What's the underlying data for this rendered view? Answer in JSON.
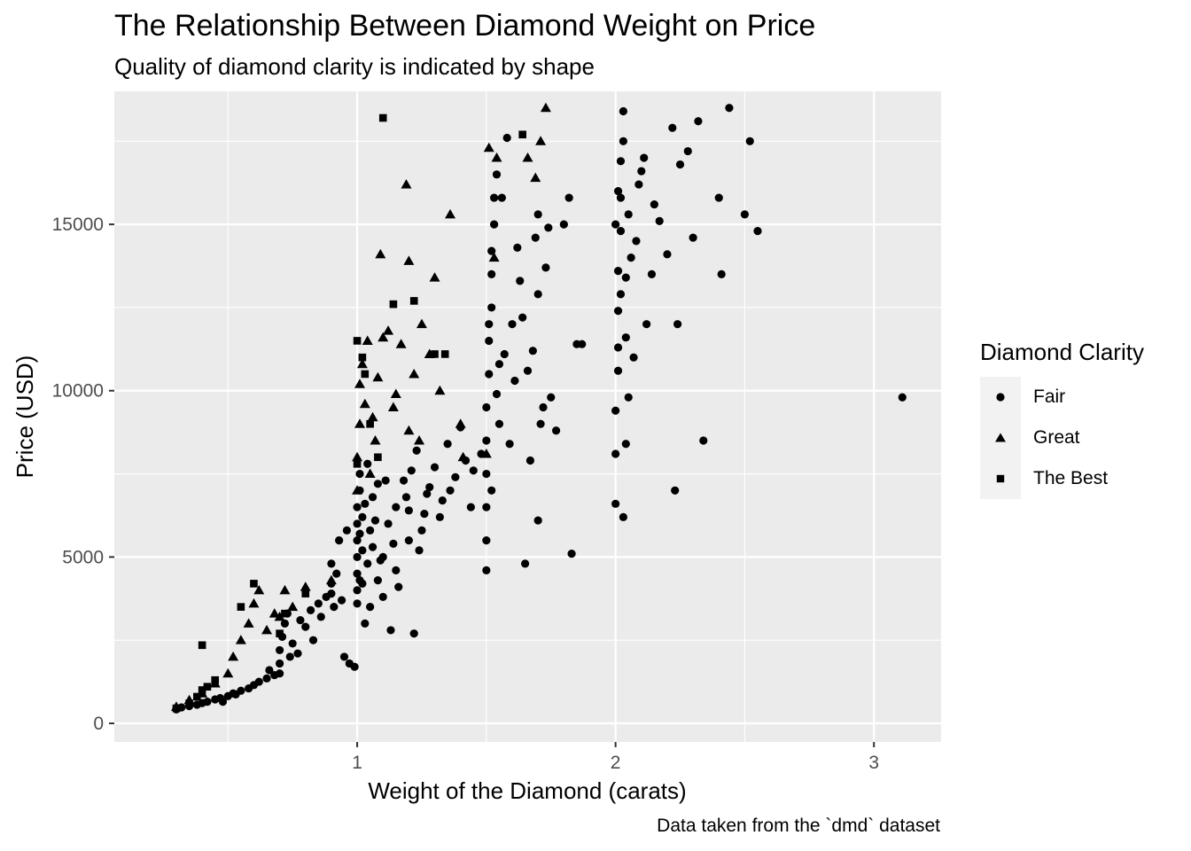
{
  "chart_data": {
    "type": "scatter",
    "title": "The Relationship Between Diamond Weight on Price",
    "subtitle": "Quality of diamond clarity is indicated by shape",
    "caption": "Data taken from the `dmd` dataset",
    "xlabel": "Weight of the Diamond (carats)",
    "ylabel": "Price (USD)",
    "xlim": [
      0.06,
      3.26
    ],
    "ylim": [
      -560,
      19000
    ],
    "x_ticks": [
      1,
      2,
      3
    ],
    "y_ticks": [
      0,
      5000,
      10000,
      15000
    ],
    "grid": true,
    "background": "#ebebeb",
    "legend": {
      "title": "Diamond Clarity",
      "position": "right",
      "entries": [
        {
          "label": "Fair",
          "shape": "circle"
        },
        {
          "label": "Great",
          "shape": "triangle"
        },
        {
          "label": "The Best",
          "shape": "square"
        }
      ]
    },
    "series": [
      {
        "name": "Fair",
        "shape": "circle",
        "points": [
          [
            0.3,
            420
          ],
          [
            0.32,
            480
          ],
          [
            0.35,
            520
          ],
          [
            0.38,
            560
          ],
          [
            0.4,
            610
          ],
          [
            0.42,
            650
          ],
          [
            0.45,
            720
          ],
          [
            0.47,
            760
          ],
          [
            0.5,
            820
          ],
          [
            0.52,
            900
          ],
          [
            0.55,
            980
          ],
          [
            0.6,
            1150
          ],
          [
            0.62,
            1250
          ],
          [
            0.65,
            1350
          ],
          [
            0.7,
            1500
          ],
          [
            0.7,
            1800
          ],
          [
            0.7,
            2200
          ],
          [
            0.71,
            2600
          ],
          [
            0.72,
            3000
          ],
          [
            0.73,
            3300
          ],
          [
            0.75,
            2400
          ],
          [
            0.78,
            3100
          ],
          [
            0.8,
            2900
          ],
          [
            0.82,
            3400
          ],
          [
            0.85,
            3600
          ],
          [
            0.88,
            3800
          ],
          [
            0.9,
            3900
          ],
          [
            0.9,
            4200
          ],
          [
            0.9,
            4800
          ],
          [
            0.91,
            3500
          ],
          [
            0.93,
            5500
          ],
          [
            0.95,
            2000
          ],
          [
            0.97,
            1800
          ],
          [
            0.99,
            1700
          ],
          [
            1.0,
            4000
          ],
          [
            1.0,
            4500
          ],
          [
            1.0,
            5000
          ],
          [
            1.0,
            5500
          ],
          [
            1.0,
            6000
          ],
          [
            1.0,
            6500
          ],
          [
            1.01,
            7000
          ],
          [
            1.01,
            7500
          ],
          [
            1.02,
            4200
          ],
          [
            1.02,
            5200
          ],
          [
            1.02,
            6200
          ],
          [
            1.03,
            3000
          ],
          [
            1.04,
            4800
          ],
          [
            1.05,
            3500
          ],
          [
            1.05,
            5800
          ],
          [
            1.06,
            6800
          ],
          [
            1.08,
            4300
          ],
          [
            1.08,
            7200
          ],
          [
            1.1,
            3800
          ],
          [
            1.1,
            5000
          ],
          [
            1.12,
            6000
          ],
          [
            1.13,
            2800
          ],
          [
            1.15,
            6500
          ],
          [
            1.15,
            4600
          ],
          [
            1.18,
            7300
          ],
          [
            1.2,
            5500
          ],
          [
            1.2,
            6400
          ],
          [
            1.22,
            2700
          ],
          [
            1.23,
            8200
          ],
          [
            1.25,
            5800
          ],
          [
            1.27,
            6900
          ],
          [
            1.3,
            7700
          ],
          [
            1.32,
            6200
          ],
          [
            1.35,
            8400
          ],
          [
            1.38,
            7400
          ],
          [
            1.4,
            8900
          ],
          [
            1.42,
            7900
          ],
          [
            1.45,
            7600
          ],
          [
            1.5,
            4600
          ],
          [
            1.5,
            5500
          ],
          [
            1.5,
            6500
          ],
          [
            1.5,
            7500
          ],
          [
            1.5,
            8500
          ],
          [
            1.5,
            9500
          ],
          [
            1.51,
            10500
          ],
          [
            1.51,
            11500
          ],
          [
            1.52,
            12500
          ],
          [
            1.52,
            13500
          ],
          [
            1.52,
            14200
          ],
          [
            1.53,
            15000
          ],
          [
            1.53,
            15800
          ],
          [
            1.54,
            16500
          ],
          [
            1.55,
            9000
          ],
          [
            1.55,
            10800
          ],
          [
            1.56,
            15800
          ],
          [
            1.58,
            17600
          ],
          [
            1.6,
            12000
          ],
          [
            1.62,
            14300
          ],
          [
            1.63,
            13300
          ],
          [
            1.65,
            4800
          ],
          [
            1.66,
            10600
          ],
          [
            1.67,
            7900
          ],
          [
            1.68,
            11200
          ],
          [
            1.7,
            6100
          ],
          [
            1.7,
            12900
          ],
          [
            1.7,
            15300
          ],
          [
            1.71,
            9000
          ],
          [
            1.73,
            13700
          ],
          [
            1.75,
            9800
          ],
          [
            1.77,
            8800
          ],
          [
            1.8,
            15000
          ],
          [
            1.82,
            15800
          ],
          [
            1.83,
            5100
          ],
          [
            1.85,
            11400
          ],
          [
            1.87,
            11400
          ],
          [
            2.0,
            6600
          ],
          [
            2.0,
            8100
          ],
          [
            2.0,
            9400
          ],
          [
            2.01,
            10600
          ],
          [
            2.01,
            11300
          ],
          [
            2.01,
            12400
          ],
          [
            2.01,
            13600
          ],
          [
            2.02,
            14800
          ],
          [
            2.02,
            15800
          ],
          [
            2.02,
            16900
          ],
          [
            2.03,
            17500
          ],
          [
            2.03,
            18400
          ],
          [
            2.04,
            11600
          ],
          [
            2.04,
            13400
          ],
          [
            2.05,
            9800
          ],
          [
            2.05,
            15300
          ],
          [
            2.07,
            11000
          ],
          [
            2.08,
            14500
          ],
          [
            2.1,
            16600
          ],
          [
            2.12,
            12000
          ],
          [
            2.14,
            13500
          ],
          [
            2.15,
            15600
          ],
          [
            2.17,
            15100
          ],
          [
            2.2,
            14100
          ],
          [
            2.22,
            17900
          ],
          [
            2.23,
            7000
          ],
          [
            2.24,
            12000
          ],
          [
            2.25,
            16800
          ],
          [
            2.28,
            17200
          ],
          [
            2.3,
            14600
          ],
          [
            2.32,
            18100
          ],
          [
            2.34,
            8500
          ],
          [
            2.4,
            15800
          ],
          [
            2.41,
            13500
          ],
          [
            2.44,
            18500
          ],
          [
            2.5,
            15300
          ],
          [
            2.52,
            17500
          ],
          [
            2.55,
            14800
          ],
          [
            3.11,
            9800
          ],
          [
            0.48,
            650
          ],
          [
            0.53,
            870
          ],
          [
            0.58,
            1050
          ],
          [
            0.66,
            1600
          ],
          [
            0.68,
            1450
          ],
          [
            0.74,
            2000
          ],
          [
            0.77,
            2100
          ],
          [
            0.83,
            2500
          ],
          [
            0.86,
            3200
          ],
          [
            0.92,
            4500
          ],
          [
            0.94,
            3700
          ],
          [
            0.96,
            5800
          ],
          [
            1.0,
            3600
          ],
          [
            1.01,
            4300
          ],
          [
            1.01,
            5700
          ],
          [
            1.03,
            6600
          ],
          [
            1.04,
            7800
          ],
          [
            1.06,
            5300
          ],
          [
            1.07,
            6100
          ],
          [
            1.09,
            4900
          ],
          [
            1.11,
            7300
          ],
          [
            1.14,
            5400
          ],
          [
            1.16,
            4100
          ],
          [
            1.19,
            6800
          ],
          [
            1.21,
            7600
          ],
          [
            1.24,
            5200
          ],
          [
            1.26,
            6300
          ],
          [
            1.28,
            7100
          ],
          [
            1.33,
            6700
          ],
          [
            1.36,
            7000
          ],
          [
            1.44,
            6500
          ],
          [
            1.48,
            8100
          ],
          [
            1.51,
            12000
          ],
          [
            1.52,
            7000
          ],
          [
            1.54,
            9900
          ],
          [
            1.57,
            11100
          ],
          [
            1.59,
            8400
          ],
          [
            1.61,
            10300
          ],
          [
            1.64,
            12200
          ],
          [
            1.69,
            14600
          ],
          [
            1.72,
            9500
          ],
          [
            1.74,
            14900
          ],
          [
            2.0,
            15000
          ],
          [
            2.01,
            16000
          ],
          [
            2.02,
            12900
          ],
          [
            2.03,
            6200
          ],
          [
            2.04,
            8400
          ],
          [
            2.06,
            14000
          ],
          [
            2.09,
            16200
          ],
          [
            2.11,
            17000
          ]
        ]
      },
      {
        "name": "Great",
        "shape": "triangle",
        "points": [
          [
            0.3,
            500
          ],
          [
            0.35,
            700
          ],
          [
            0.4,
            900
          ],
          [
            0.45,
            1200
          ],
          [
            0.5,
            1500
          ],
          [
            0.52,
            2000
          ],
          [
            0.55,
            2500
          ],
          [
            0.58,
            3000
          ],
          [
            0.6,
            3600
          ],
          [
            0.62,
            4000
          ],
          [
            0.7,
            3200
          ],
          [
            0.72,
            4000
          ],
          [
            0.75,
            3500
          ],
          [
            0.9,
            4300
          ],
          [
            1.0,
            7000
          ],
          [
            1.0,
            8000
          ],
          [
            1.01,
            9000
          ],
          [
            1.01,
            10200
          ],
          [
            1.02,
            10800
          ],
          [
            1.03,
            9600
          ],
          [
            1.04,
            11500
          ],
          [
            1.05,
            7500
          ],
          [
            1.07,
            8500
          ],
          [
            1.08,
            10400
          ],
          [
            1.09,
            14100
          ],
          [
            1.1,
            11600
          ],
          [
            1.12,
            11800
          ],
          [
            1.15,
            9900
          ],
          [
            1.17,
            11400
          ],
          [
            1.19,
            16200
          ],
          [
            1.2,
            13900
          ],
          [
            1.2,
            8800
          ],
          [
            1.22,
            10500
          ],
          [
            1.25,
            12000
          ],
          [
            1.28,
            11100
          ],
          [
            1.3,
            13400
          ],
          [
            1.32,
            10000
          ],
          [
            1.36,
            15300
          ],
          [
            1.4,
            9000
          ],
          [
            1.5,
            8100
          ],
          [
            1.51,
            17300
          ],
          [
            1.53,
            14000
          ],
          [
            1.54,
            17000
          ],
          [
            1.66,
            17000
          ],
          [
            1.69,
            16400
          ],
          [
            1.71,
            17500
          ],
          [
            1.73,
            18500
          ],
          [
            0.65,
            2800
          ],
          [
            0.68,
            3300
          ],
          [
            0.8,
            4100
          ],
          [
            1.06,
            9200
          ],
          [
            1.14,
            9500
          ],
          [
            1.24,
            8500
          ],
          [
            1.41,
            8000
          ]
        ]
      },
      {
        "name": "The Best",
        "shape": "square",
        "points": [
          [
            0.3,
            450
          ],
          [
            0.35,
            600
          ],
          [
            0.38,
            800
          ],
          [
            0.4,
            1000
          ],
          [
            0.42,
            1100
          ],
          [
            0.45,
            1300
          ],
          [
            0.4,
            2350
          ],
          [
            0.55,
            3500
          ],
          [
            0.6,
            4200
          ],
          [
            0.7,
            2700
          ],
          [
            0.72,
            3300
          ],
          [
            0.8,
            3900
          ],
          [
            1.0,
            7800
          ],
          [
            1.0,
            11500
          ],
          [
            1.02,
            11000
          ],
          [
            1.05,
            9000
          ],
          [
            1.1,
            18200
          ],
          [
            1.14,
            12600
          ],
          [
            1.22,
            12700
          ],
          [
            1.3,
            11100
          ],
          [
            1.34,
            11100
          ],
          [
            1.64,
            17700
          ],
          [
            1.03,
            10500
          ],
          [
            1.08,
            8000
          ]
        ]
      }
    ]
  }
}
